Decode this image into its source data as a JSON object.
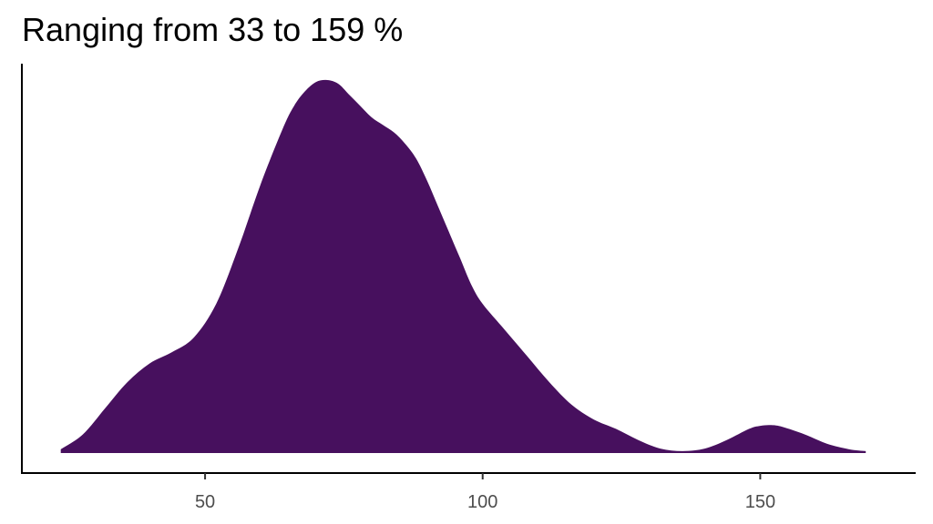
{
  "chart_data": {
    "type": "area",
    "title": "Ranging from 33 to 159 %",
    "xlabel": "",
    "ylabel": "",
    "xlim": [
      17,
      178
    ],
    "ylim": [
      0,
      1
    ],
    "x_ticks": [
      50,
      100,
      150
    ],
    "x_tick_labels": [
      "50",
      "100",
      "150"
    ],
    "y_ticks_shown": false,
    "grid": false,
    "legend": "none",
    "fill_color": "#47105e",
    "series": [
      {
        "x": [
          24,
          28,
          32,
          36,
          40,
          44,
          48,
          52,
          56,
          60,
          64,
          66,
          68,
          70,
          72,
          74,
          76,
          78,
          80,
          82,
          84,
          86,
          88,
          90,
          92,
          94,
          96,
          98,
          100,
          104,
          108,
          112,
          116,
          120,
          124,
          128,
          132,
          136,
          140,
          144,
          148,
          150,
          152,
          154,
          158,
          162,
          166,
          169
        ],
        "values": [
          0.01,
          0.05,
          0.12,
          0.19,
          0.24,
          0.27,
          0.31,
          0.4,
          0.55,
          0.72,
          0.87,
          0.93,
          0.97,
          0.995,
          1.0,
          0.99,
          0.96,
          0.93,
          0.9,
          0.88,
          0.86,
          0.83,
          0.79,
          0.73,
          0.66,
          0.59,
          0.52,
          0.45,
          0.4,
          0.33,
          0.26,
          0.19,
          0.13,
          0.09,
          0.065,
          0.035,
          0.012,
          0.005,
          0.012,
          0.035,
          0.065,
          0.073,
          0.075,
          0.07,
          0.05,
          0.025,
          0.01,
          0.005
        ]
      }
    ]
  }
}
